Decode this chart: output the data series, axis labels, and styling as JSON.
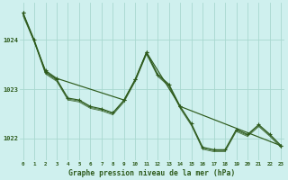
{
  "background_color": "#cff0ee",
  "grid_color": "#a8d8d0",
  "line_color": "#2d5a1b",
  "xlabel": "Graphe pression niveau de la mer (hPa)",
  "yticks": [
    1022,
    1023,
    1024
  ],
  "xticks": [
    0,
    1,
    2,
    3,
    4,
    5,
    6,
    7,
    8,
    9,
    10,
    11,
    12,
    13,
    14,
    15,
    16,
    17,
    18,
    19,
    20,
    21,
    22,
    23
  ],
  "xlim": [
    -0.3,
    23.3
  ],
  "ylim": [
    1021.55,
    1024.75
  ],
  "main_line": {
    "x": [
      0,
      1,
      2,
      3,
      4,
      5,
      6,
      7,
      8,
      9,
      10,
      11,
      12,
      13,
      14,
      15,
      16,
      17,
      18,
      19,
      20,
      21,
      22,
      23
    ],
    "y": [
      1024.55,
      1024.0,
      1023.35,
      1023.2,
      1022.82,
      1022.78,
      1022.65,
      1022.6,
      1022.52,
      1022.78,
      1023.2,
      1023.75,
      1023.3,
      1023.1,
      1022.65,
      1022.3,
      1021.82,
      1021.77,
      1021.77,
      1022.18,
      1022.08,
      1022.28,
      1022.08,
      1021.85
    ]
  },
  "smooth_line": {
    "x": [
      0,
      2,
      3,
      9,
      10,
      11,
      14,
      23
    ],
    "y": [
      1024.55,
      1023.38,
      1023.22,
      1022.78,
      1023.2,
      1023.75,
      1022.65,
      1021.85
    ]
  },
  "shadow1": {
    "x": [
      0,
      1,
      2,
      3,
      4,
      5,
      6,
      7,
      8,
      9,
      10,
      11,
      12,
      13,
      14,
      15,
      16,
      17,
      18,
      19,
      20,
      21,
      22,
      23
    ],
    "y": [
      1024.52,
      1023.98,
      1023.33,
      1023.18,
      1022.8,
      1022.76,
      1022.63,
      1022.58,
      1022.5,
      1022.76,
      1023.18,
      1023.73,
      1023.28,
      1023.08,
      1022.63,
      1022.28,
      1021.8,
      1021.75,
      1021.75,
      1022.16,
      1022.06,
      1022.26,
      1022.06,
      1021.83
    ]
  },
  "shadow2": {
    "x": [
      0,
      1,
      2,
      3,
      4,
      5,
      6,
      7,
      8,
      9,
      10,
      11,
      12,
      13,
      14,
      15,
      16,
      17,
      18,
      19,
      20,
      21,
      22,
      23
    ],
    "y": [
      1024.49,
      1023.96,
      1023.31,
      1023.16,
      1022.78,
      1022.74,
      1022.61,
      1022.56,
      1022.48,
      1022.74,
      1023.16,
      1023.71,
      1023.26,
      1023.06,
      1022.61,
      1022.26,
      1021.78,
      1021.73,
      1021.73,
      1022.14,
      1022.04,
      1022.24,
      1022.04,
      1021.81
    ]
  }
}
